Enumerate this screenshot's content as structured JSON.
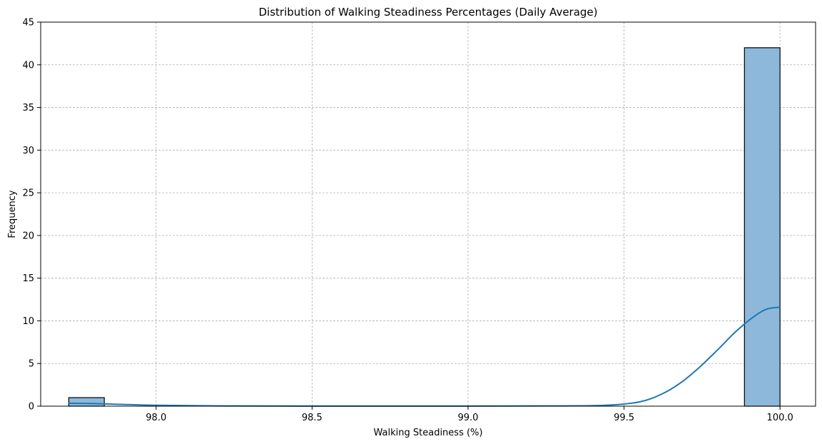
{
  "chart_data": {
    "type": "bar",
    "title": "Distribution of Walking Steadiness Percentages (Daily Average)",
    "xlabel": "Walking Steadiness (%)",
    "ylabel": "Frequency",
    "xlim": [
      97.63,
      100.114
    ],
    "ylim": [
      0,
      45
    ],
    "xticks": [
      98.0,
      98.5,
      99.0,
      99.5,
      100.0
    ],
    "xtick_labels": [
      "98.0",
      "98.5",
      "99.0",
      "99.5",
      "100.0"
    ],
    "yticks": [
      0,
      5,
      10,
      15,
      20,
      25,
      30,
      35,
      40,
      45
    ],
    "ytick_labels": [
      "0",
      "5",
      "10",
      "15",
      "20",
      "25",
      "30",
      "35",
      "40",
      "45"
    ],
    "grid": true,
    "bins": [
      {
        "x0": 97.72,
        "x1": 97.834,
        "count": 1
      },
      {
        "x0": 99.886,
        "x1": 100.0,
        "count": 42
      }
    ],
    "kde": {
      "x": [
        97.72,
        97.8,
        97.9,
        98.0,
        98.2,
        98.6,
        99.0,
        99.3,
        99.45,
        99.55,
        99.62,
        99.68,
        99.74,
        99.8,
        99.86,
        99.92,
        99.96,
        100.0
      ],
      "y": [
        0.35,
        0.3,
        0.2,
        0.1,
        0.03,
        0.01,
        0.01,
        0.03,
        0.12,
        0.5,
        1.4,
        2.7,
        4.5,
        6.6,
        8.8,
        10.6,
        11.4,
        11.6
      ]
    },
    "colors": {
      "bar_fill": "#8db8da",
      "bar_edge": "#000000",
      "kde_line": "#1f77b4"
    }
  }
}
